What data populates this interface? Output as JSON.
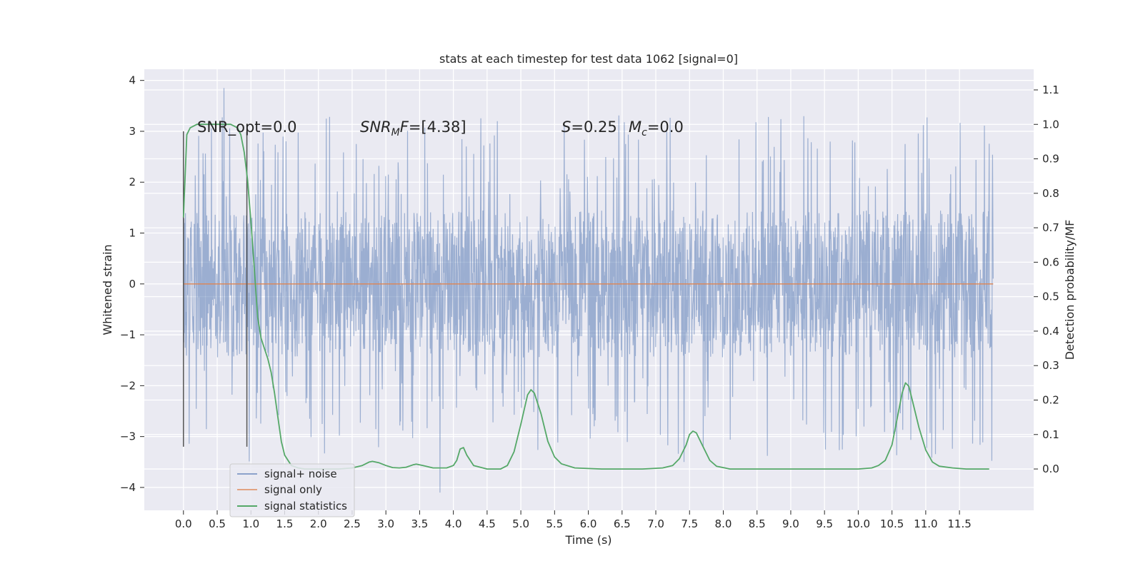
{
  "chart_data": {
    "type": "line",
    "title": "stats at each timestep for test data 1062 [signal=0]",
    "xlabel": "Time (s)",
    "ylabel": "Whitened strain",
    "y2label": "Detection probability/MF",
    "xlim": [
      -0.58,
      12.6
    ],
    "ylim": [
      -4.45,
      4.22
    ],
    "y2lim": [
      -0.12,
      1.16
    ],
    "x_ticks": [
      0.0,
      0.5,
      1.0,
      1.5,
      2.0,
      2.5,
      3.0,
      3.5,
      4.0,
      4.5,
      5.0,
      5.5,
      6.0,
      6.5,
      7.0,
      7.5,
      8.0,
      8.5,
      9.0,
      9.5,
      10.0,
      10.5,
      11.0,
      11.5
    ],
    "x_tick_labels": [
      "0.0",
      "0.5",
      "1.0",
      "1.5",
      "2.0",
      "2.5",
      "3.0",
      "3.5",
      "4.0",
      "4.5",
      "5.0",
      "5.5",
      "6.0",
      "6.5",
      "7.0",
      "7.5",
      "8.0",
      "8.5",
      "9.0",
      "9.5",
      "10.0",
      "10.5",
      "11.0",
      "11.5"
    ],
    "y_ticks": [
      -4,
      -3,
      -2,
      -1,
      0,
      1,
      2,
      3,
      4
    ],
    "y_tick_labels": [
      "−4",
      "−3",
      "−2",
      "−1",
      "0",
      "1",
      "2",
      "3",
      "4"
    ],
    "y2_ticks": [
      0.0,
      0.1,
      0.2,
      0.3,
      0.4,
      0.5,
      0.6,
      0.7,
      0.8,
      0.9,
      1.0,
      1.1
    ],
    "y2_tick_labels": [
      "0.0",
      "0.1",
      "0.2",
      "0.3",
      "0.4",
      "0.5",
      "0.6",
      "0.7",
      "0.8",
      "0.9",
      "1.0",
      "1.1"
    ],
    "grid": true,
    "legend_position": "lower-left",
    "series": [
      {
        "name": "signal+ noise",
        "color": "#4c72b0",
        "axis": "left",
        "x_range": [
          0.0,
          12.0
        ],
        "typical_range": [
          -1.7,
          1.7
        ],
        "extremes": {
          "max": 3.85,
          "min": -4.1
        }
      },
      {
        "name": "signal only",
        "color": "#dd8452",
        "axis": "left",
        "x": [
          0.0,
          12.0
        ],
        "y": [
          0.0,
          0.0
        ]
      },
      {
        "name": "signal statistics",
        "color": "#55a868",
        "axis": "right",
        "x": [
          0.0,
          0.05,
          0.1,
          0.2,
          0.3,
          0.4,
          0.5,
          0.6,
          0.7,
          0.8,
          0.85,
          0.9,
          0.95,
          1.0,
          1.05,
          1.1,
          1.15,
          1.2,
          1.25,
          1.3,
          1.35,
          1.4,
          1.45,
          1.5,
          1.6,
          1.7,
          1.8,
          2.0,
          2.3,
          2.5,
          2.65,
          2.75,
          2.8,
          2.9,
          3.0,
          3.1,
          3.2,
          3.3,
          3.4,
          3.45,
          3.55,
          3.7,
          3.9,
          4.0,
          4.05,
          4.1,
          4.15,
          4.2,
          4.3,
          4.5,
          4.7,
          4.8,
          4.9,
          5.0,
          5.1,
          5.15,
          5.2,
          5.3,
          5.4,
          5.5,
          5.6,
          5.8,
          6.2,
          6.8,
          7.1,
          7.25,
          7.35,
          7.45,
          7.5,
          7.55,
          7.6,
          7.7,
          7.8,
          7.9,
          8.1,
          8.5,
          9.0,
          9.5,
          10.0,
          10.2,
          10.3,
          10.4,
          10.5,
          10.6,
          10.65,
          10.7,
          10.75,
          10.8,
          10.9,
          11.0,
          11.1,
          11.2,
          11.4,
          11.6,
          11.8,
          11.94
        ],
        "y": [
          0.73,
          0.97,
          0.99,
          1.0,
          1.0,
          1.0,
          1.0,
          1.0,
          1.0,
          0.99,
          0.97,
          0.92,
          0.84,
          0.72,
          0.58,
          0.44,
          0.38,
          0.35,
          0.32,
          0.28,
          0.22,
          0.15,
          0.08,
          0.04,
          0.01,
          0.003,
          0.0,
          0.0,
          0.0,
          0.003,
          0.01,
          0.02,
          0.022,
          0.018,
          0.01,
          0.004,
          0.003,
          0.005,
          0.012,
          0.014,
          0.01,
          0.003,
          0.003,
          0.01,
          0.025,
          0.058,
          0.062,
          0.04,
          0.01,
          0.0,
          0.0,
          0.01,
          0.05,
          0.13,
          0.215,
          0.23,
          0.22,
          0.16,
          0.08,
          0.035,
          0.015,
          0.003,
          0.0,
          0.0,
          0.003,
          0.01,
          0.03,
          0.07,
          0.1,
          0.11,
          0.105,
          0.065,
          0.025,
          0.008,
          0.0,
          0.0,
          0.0,
          0.0,
          0.0,
          0.003,
          0.01,
          0.025,
          0.07,
          0.17,
          0.22,
          0.25,
          0.24,
          0.2,
          0.12,
          0.055,
          0.02,
          0.008,
          0.003,
          0.0,
          0.0,
          0.0
        ]
      }
    ],
    "vlines": [
      {
        "x": 0.0,
        "ymin": -3.2,
        "ymax": 3.0,
        "color": "#555555"
      },
      {
        "x": 0.94,
        "ymin": -3.2,
        "ymax": 3.0,
        "color": "#555555"
      }
    ],
    "annotations": {
      "snr_opt": "SNR_opt=0.0",
      "snr_mf_base": "SNR",
      "snr_mf_sub": "M",
      "snr_mf_rest": "F",
      "snr_mf_value": "=[4.38]",
      "s_label": "S",
      "s_value": "=0.25",
      "mc_base": "M",
      "mc_sub": "c",
      "mc_value": "=0.0"
    }
  }
}
